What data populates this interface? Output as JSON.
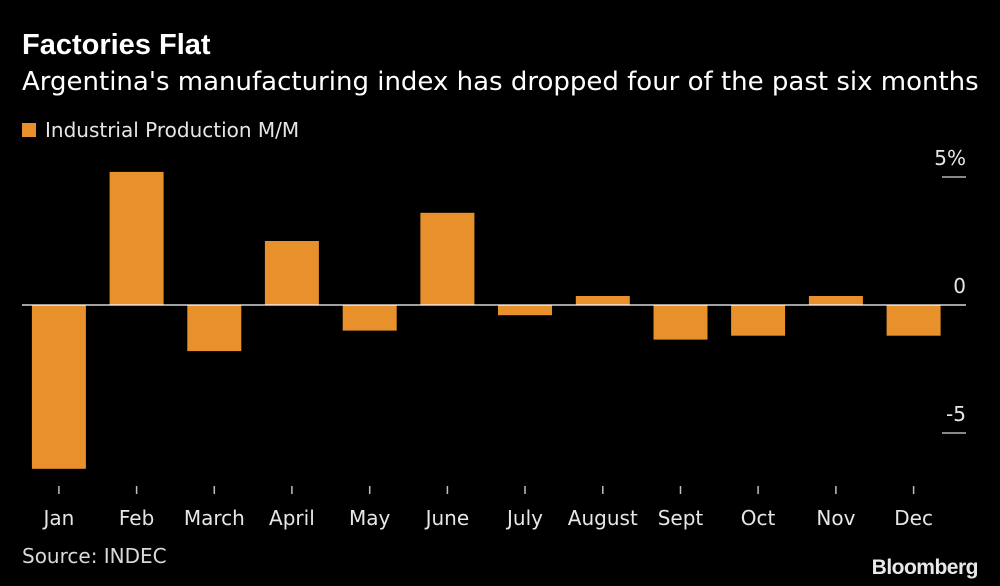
{
  "chart_data": {
    "type": "bar",
    "title": "Factories Flat",
    "subtitle": "Argentina's manufacturing index has dropped four of the past six months",
    "categories": [
      "Jan",
      "Feb",
      "March",
      "April",
      "May",
      "June",
      "July",
      "August",
      "Sept",
      "Oct",
      "Nov",
      "Dec"
    ],
    "series": [
      {
        "name": "Industrial Production M/M",
        "values": [
          -6.4,
          5.2,
          -1.8,
          2.5,
          -1.0,
          3.6,
          -0.4,
          0.35,
          -1.35,
          -1.2,
          0.35,
          -1.2
        ]
      }
    ],
    "ylim": [
      -7.2,
      5.8
    ],
    "y_ticks": [
      5,
      0,
      -5
    ],
    "y_tick_labels": [
      "5%",
      "0",
      "-5"
    ],
    "xlabel": "",
    "ylabel": "",
    "grid": false,
    "legend_position": "top-left",
    "axis_position": "right",
    "bar_color": "#e8912c",
    "zero_line_color": "#ffffff"
  },
  "source": "Source: INDEC",
  "brand": "Bloomberg"
}
